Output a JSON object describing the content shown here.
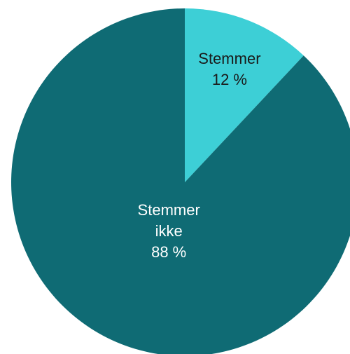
{
  "chart_data": {
    "type": "pie",
    "categories": [
      "Stemmer",
      "Stemmer ikke"
    ],
    "values": [
      12,
      88
    ],
    "value_labels": [
      "12 %",
      "88 %"
    ],
    "colors": [
      "#3dcfd6",
      "#0f6b74"
    ],
    "label_colors": [
      "#1a1a1a",
      "#ffffff"
    ]
  }
}
